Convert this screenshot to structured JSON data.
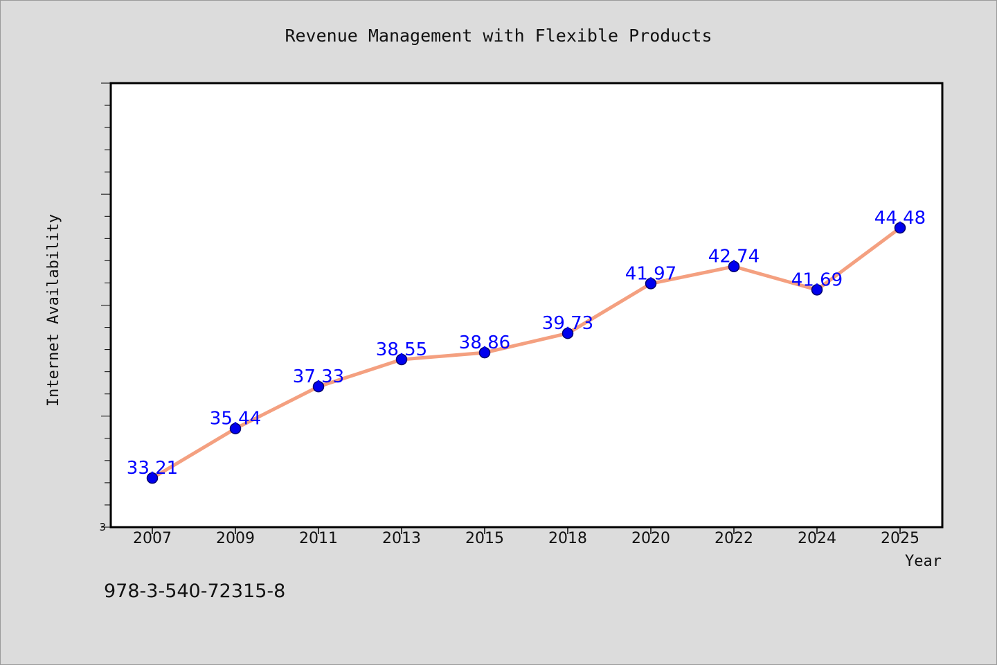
{
  "chart_data": {
    "type": "line",
    "title": "Revenue Management with Flexible Products",
    "xlabel": "Year",
    "ylabel": "Internet Availability",
    "ytick_labels": [
      "3"
    ],
    "categories": [
      "2007",
      "2009",
      "2011",
      "2013",
      "2015",
      "2018",
      "2020",
      "2022",
      "2024",
      "2025"
    ],
    "series": [
      {
        "values": [
          33.21,
          35.44,
          37.33,
          38.55,
          38.86,
          39.73,
          41.97,
          42.74,
          41.69,
          44.48
        ]
      }
    ],
    "data_labels": [
      "33.21",
      "35.44",
      "37.33",
      "38.55",
      "38.86",
      "39.73",
      "41.97",
      "42.74",
      "41.69",
      "44.48"
    ],
    "ylim": [
      31,
      51
    ],
    "grid": false,
    "legend": "none",
    "colors": {
      "line": "#f4a080",
      "marker": "#0000ee",
      "marker_edge": "#00006e",
      "label": "#0000ff",
      "plot_bg": "#ffffff",
      "page_bg": "#dcdcdc"
    }
  },
  "footer": {
    "isbn": "978-3-540-72315-8"
  }
}
